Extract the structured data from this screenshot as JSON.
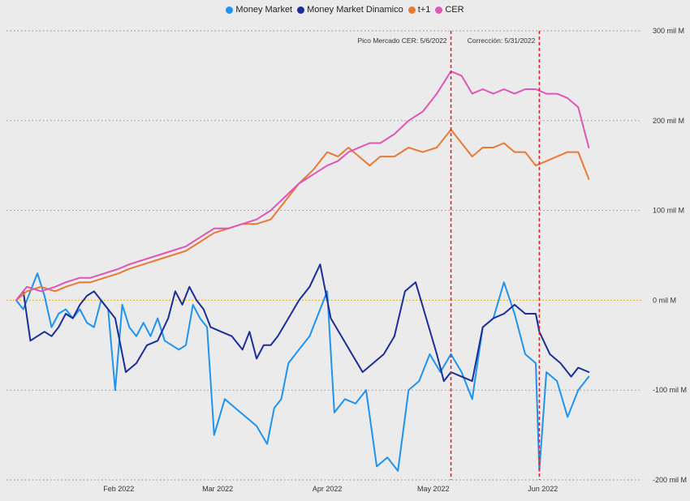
{
  "chart_data": {
    "type": "line",
    "legend_position": "top-center",
    "grid": true,
    "y_unit_note": "",
    "ylim": [
      -200,
      300
    ],
    "x_range": [
      "2022-01-03",
      "2022-06-30"
    ],
    "y_ticks": [
      {
        "value": 300,
        "label": "300 mil M"
      },
      {
        "value": 200,
        "label": "200 mil M"
      },
      {
        "value": 100,
        "label": "100 mil M"
      },
      {
        "value": 0,
        "label": "0 mil M"
      },
      {
        "value": -100,
        "label": "-100 mil M"
      },
      {
        "value": -200,
        "label": "-200 mil M"
      }
    ],
    "x_ticks": [
      {
        "date": "2022-02-01",
        "label": "Feb 2022"
      },
      {
        "date": "2022-03-01",
        "label": "Mar 2022"
      },
      {
        "date": "2022-04-01",
        "label": "Apr 2022"
      },
      {
        "date": "2022-05-01",
        "label": "May 2022"
      },
      {
        "date": "2022-06-01",
        "label": "Jun 2022"
      }
    ],
    "annotations": [
      {
        "date": "2022-05-06",
        "label": "Pico Mercado CER: 5/6/2022",
        "color": "#e0242a"
      },
      {
        "date": "2022-05-31",
        "label": "Corrección: 5/31/2022",
        "color": "#e0242a"
      }
    ],
    "zero_line_color": "#e6b830",
    "series": [
      {
        "name": "Money Market",
        "color": "#1f93f0",
        "points": [
          [
            "2022-01-03",
            0
          ],
          [
            "2022-01-05",
            -10
          ],
          [
            "2022-01-07",
            10
          ],
          [
            "2022-01-09",
            30
          ],
          [
            "2022-01-11",
            5
          ],
          [
            "2022-01-13",
            -30
          ],
          [
            "2022-01-15",
            -15
          ],
          [
            "2022-01-17",
            -10
          ],
          [
            "2022-01-19",
            -20
          ],
          [
            "2022-01-21",
            -10
          ],
          [
            "2022-01-23",
            -25
          ],
          [
            "2022-01-25",
            -30
          ],
          [
            "2022-01-27",
            0
          ],
          [
            "2022-01-29",
            -10
          ],
          [
            "2022-01-31",
            -100
          ],
          [
            "2022-02-02",
            -5
          ],
          [
            "2022-02-04",
            -30
          ],
          [
            "2022-02-06",
            -40
          ],
          [
            "2022-02-08",
            -25
          ],
          [
            "2022-02-10",
            -40
          ],
          [
            "2022-02-12",
            -20
          ],
          [
            "2022-02-14",
            -45
          ],
          [
            "2022-02-16",
            -50
          ],
          [
            "2022-02-18",
            -55
          ],
          [
            "2022-02-20",
            -50
          ],
          [
            "2022-02-22",
            -5
          ],
          [
            "2022-02-24",
            -20
          ],
          [
            "2022-02-26",
            -30
          ],
          [
            "2022-02-28",
            -150
          ],
          [
            "2022-03-03",
            -110
          ],
          [
            "2022-03-06",
            -120
          ],
          [
            "2022-03-09",
            -130
          ],
          [
            "2022-03-12",
            -140
          ],
          [
            "2022-03-15",
            -160
          ],
          [
            "2022-03-17",
            -120
          ],
          [
            "2022-03-19",
            -110
          ],
          [
            "2022-03-21",
            -70
          ],
          [
            "2022-03-24",
            -55
          ],
          [
            "2022-03-27",
            -40
          ],
          [
            "2022-03-30",
            -10
          ],
          [
            "2022-04-01",
            10
          ],
          [
            "2022-04-03",
            -125
          ],
          [
            "2022-04-06",
            -110
          ],
          [
            "2022-04-09",
            -115
          ],
          [
            "2022-04-12",
            -100
          ],
          [
            "2022-04-15",
            -185
          ],
          [
            "2022-04-18",
            -175
          ],
          [
            "2022-04-21",
            -190
          ],
          [
            "2022-04-24",
            -100
          ],
          [
            "2022-04-27",
            -90
          ],
          [
            "2022-04-30",
            -60
          ],
          [
            "2022-05-03",
            -80
          ],
          [
            "2022-05-06",
            -60
          ],
          [
            "2022-05-09",
            -80
          ],
          [
            "2022-05-12",
            -110
          ],
          [
            "2022-05-15",
            -30
          ],
          [
            "2022-05-18",
            -20
          ],
          [
            "2022-05-21",
            20
          ],
          [
            "2022-05-24",
            -15
          ],
          [
            "2022-05-27",
            -60
          ],
          [
            "2022-05-30",
            -70
          ],
          [
            "2022-05-31",
            -190
          ],
          [
            "2022-06-02",
            -80
          ],
          [
            "2022-06-05",
            -90
          ],
          [
            "2022-06-08",
            -130
          ],
          [
            "2022-06-11",
            -100
          ],
          [
            "2022-06-14",
            -85
          ]
        ]
      },
      {
        "name": "Money Market Dinamico",
        "color": "#1a2e9a",
        "points": [
          [
            "2022-01-03",
            0
          ],
          [
            "2022-01-05",
            10
          ],
          [
            "2022-01-07",
            -45
          ],
          [
            "2022-01-09",
            -40
          ],
          [
            "2022-01-11",
            -35
          ],
          [
            "2022-01-13",
            -40
          ],
          [
            "2022-01-15",
            -30
          ],
          [
            "2022-01-17",
            -15
          ],
          [
            "2022-01-19",
            -20
          ],
          [
            "2022-01-21",
            -5
          ],
          [
            "2022-01-23",
            5
          ],
          [
            "2022-01-25",
            10
          ],
          [
            "2022-01-27",
            0
          ],
          [
            "2022-01-29",
            -10
          ],
          [
            "2022-01-31",
            -20
          ],
          [
            "2022-02-03",
            -80
          ],
          [
            "2022-02-06",
            -70
          ],
          [
            "2022-02-09",
            -50
          ],
          [
            "2022-02-12",
            -45
          ],
          [
            "2022-02-15",
            -20
          ],
          [
            "2022-02-17",
            10
          ],
          [
            "2022-02-19",
            -5
          ],
          [
            "2022-02-21",
            15
          ],
          [
            "2022-02-23",
            0
          ],
          [
            "2022-02-25",
            -10
          ],
          [
            "2022-02-27",
            -30
          ],
          [
            "2022-03-02",
            -35
          ],
          [
            "2022-03-05",
            -40
          ],
          [
            "2022-03-08",
            -55
          ],
          [
            "2022-03-10",
            -35
          ],
          [
            "2022-03-12",
            -65
          ],
          [
            "2022-03-14",
            -50
          ],
          [
            "2022-03-16",
            -50
          ],
          [
            "2022-03-18",
            -40
          ],
          [
            "2022-03-21",
            -20
          ],
          [
            "2022-03-24",
            0
          ],
          [
            "2022-03-27",
            15
          ],
          [
            "2022-03-30",
            40
          ],
          [
            "2022-04-02",
            -20
          ],
          [
            "2022-04-05",
            -40
          ],
          [
            "2022-04-08",
            -60
          ],
          [
            "2022-04-11",
            -80
          ],
          [
            "2022-04-14",
            -70
          ],
          [
            "2022-04-17",
            -60
          ],
          [
            "2022-04-20",
            -40
          ],
          [
            "2022-04-23",
            10
          ],
          [
            "2022-04-26",
            20
          ],
          [
            "2022-04-29",
            -20
          ],
          [
            "2022-05-02",
            -60
          ],
          [
            "2022-05-04",
            -90
          ],
          [
            "2022-05-06",
            -80
          ],
          [
            "2022-05-09",
            -85
          ],
          [
            "2022-05-12",
            -90
          ],
          [
            "2022-05-15",
            -30
          ],
          [
            "2022-05-18",
            -20
          ],
          [
            "2022-05-21",
            -15
          ],
          [
            "2022-05-24",
            -5
          ],
          [
            "2022-05-27",
            -15
          ],
          [
            "2022-05-30",
            -15
          ],
          [
            "2022-05-31",
            -35
          ],
          [
            "2022-06-03",
            -60
          ],
          [
            "2022-06-06",
            -70
          ],
          [
            "2022-06-09",
            -85
          ],
          [
            "2022-06-11",
            -75
          ],
          [
            "2022-06-14",
            -80
          ]
        ]
      },
      {
        "name": "t+1",
        "color": "#e87a35",
        "points": [
          [
            "2022-01-03",
            0
          ],
          [
            "2022-01-06",
            10
          ],
          [
            "2022-01-10",
            15
          ],
          [
            "2022-01-14",
            10
          ],
          [
            "2022-01-17",
            15
          ],
          [
            "2022-01-21",
            20
          ],
          [
            "2022-01-24",
            20
          ],
          [
            "2022-01-28",
            25
          ],
          [
            "2022-02-01",
            30
          ],
          [
            "2022-02-04",
            35
          ],
          [
            "2022-02-08",
            40
          ],
          [
            "2022-02-12",
            45
          ],
          [
            "2022-02-16",
            50
          ],
          [
            "2022-02-20",
            55
          ],
          [
            "2022-02-24",
            65
          ],
          [
            "2022-02-28",
            75
          ],
          [
            "2022-03-04",
            80
          ],
          [
            "2022-03-08",
            85
          ],
          [
            "2022-03-12",
            85
          ],
          [
            "2022-03-16",
            90
          ],
          [
            "2022-03-20",
            110
          ],
          [
            "2022-03-24",
            130
          ],
          [
            "2022-03-28",
            145
          ],
          [
            "2022-04-01",
            165
          ],
          [
            "2022-04-04",
            160
          ],
          [
            "2022-04-07",
            170
          ],
          [
            "2022-04-10",
            160
          ],
          [
            "2022-04-13",
            150
          ],
          [
            "2022-04-16",
            160
          ],
          [
            "2022-04-20",
            160
          ],
          [
            "2022-04-24",
            170
          ],
          [
            "2022-04-28",
            165
          ],
          [
            "2022-05-02",
            170
          ],
          [
            "2022-05-06",
            190
          ],
          [
            "2022-05-09",
            175
          ],
          [
            "2022-05-12",
            160
          ],
          [
            "2022-05-15",
            170
          ],
          [
            "2022-05-18",
            170
          ],
          [
            "2022-05-21",
            175
          ],
          [
            "2022-05-24",
            165
          ],
          [
            "2022-05-27",
            165
          ],
          [
            "2022-05-30",
            150
          ],
          [
            "2022-06-02",
            155
          ],
          [
            "2022-06-05",
            160
          ],
          [
            "2022-06-08",
            165
          ],
          [
            "2022-06-11",
            165
          ],
          [
            "2022-06-14",
            135
          ]
        ]
      },
      {
        "name": "CER",
        "color": "#e055b5",
        "points": [
          [
            "2022-01-03",
            0
          ],
          [
            "2022-01-06",
            15
          ],
          [
            "2022-01-10",
            10
          ],
          [
            "2022-01-14",
            15
          ],
          [
            "2022-01-17",
            20
          ],
          [
            "2022-01-21",
            25
          ],
          [
            "2022-01-24",
            25
          ],
          [
            "2022-01-28",
            30
          ],
          [
            "2022-02-01",
            35
          ],
          [
            "2022-02-04",
            40
          ],
          [
            "2022-02-08",
            45
          ],
          [
            "2022-02-12",
            50
          ],
          [
            "2022-02-16",
            55
          ],
          [
            "2022-02-20",
            60
          ],
          [
            "2022-02-24",
            70
          ],
          [
            "2022-02-28",
            80
          ],
          [
            "2022-03-04",
            80
          ],
          [
            "2022-03-08",
            85
          ],
          [
            "2022-03-12",
            90
          ],
          [
            "2022-03-16",
            100
          ],
          [
            "2022-03-20",
            115
          ],
          [
            "2022-03-24",
            130
          ],
          [
            "2022-03-28",
            140
          ],
          [
            "2022-04-01",
            150
          ],
          [
            "2022-04-04",
            155
          ],
          [
            "2022-04-07",
            165
          ],
          [
            "2022-04-10",
            170
          ],
          [
            "2022-04-13",
            175
          ],
          [
            "2022-04-16",
            175
          ],
          [
            "2022-04-20",
            185
          ],
          [
            "2022-04-24",
            200
          ],
          [
            "2022-04-28",
            210
          ],
          [
            "2022-05-02",
            230
          ],
          [
            "2022-05-06",
            255
          ],
          [
            "2022-05-09",
            250
          ],
          [
            "2022-05-12",
            230
          ],
          [
            "2022-05-15",
            235
          ],
          [
            "2022-05-18",
            230
          ],
          [
            "2022-05-21",
            235
          ],
          [
            "2022-05-24",
            230
          ],
          [
            "2022-05-27",
            235
          ],
          [
            "2022-05-30",
            235
          ],
          [
            "2022-06-02",
            230
          ],
          [
            "2022-06-05",
            230
          ],
          [
            "2022-06-08",
            225
          ],
          [
            "2022-06-11",
            215
          ],
          [
            "2022-06-14",
            170
          ]
        ]
      }
    ]
  }
}
